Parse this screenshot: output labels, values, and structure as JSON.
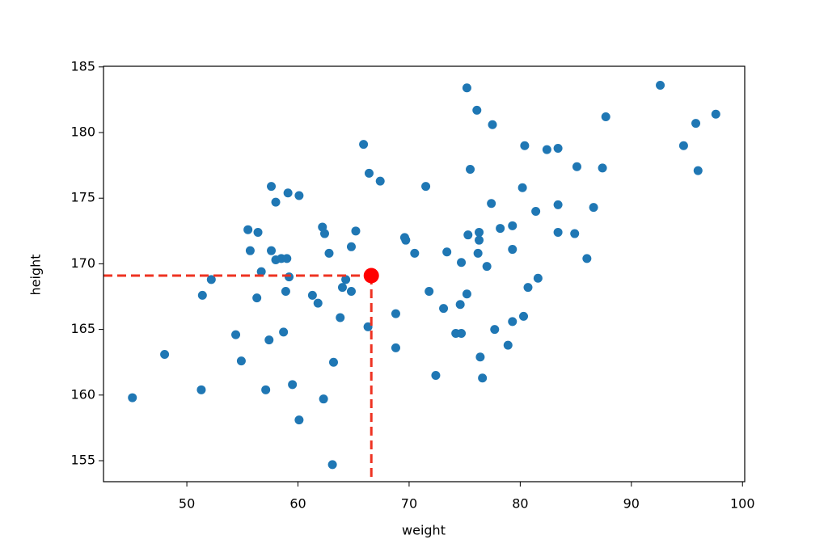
{
  "chart_data": {
    "type": "scatter",
    "xlabel": "weight",
    "ylabel": "height",
    "color": "#1f77b4",
    "x": [
      45.1,
      48.0,
      51.3,
      51.4,
      52.2,
      54.4,
      54.9,
      55.5,
      55.7,
      56.4,
      56.3,
      56.7,
      57.1,
      57.4,
      57.6,
      57.6,
      58.0,
      58.0,
      58.5,
      58.7,
      59.0,
      58.9,
      59.1,
      59.2,
      59.5,
      60.1,
      60.1,
      61.3,
      61.8,
      62.2,
      62.4,
      62.3,
      62.8,
      63.1,
      63.2,
      63.8,
      64.0,
      64.3,
      64.8,
      64.8,
      65.2,
      65.9,
      66.3,
      66.4,
      67.4,
      68.8,
      68.8,
      69.6,
      69.7,
      70.5,
      71.5,
      71.8,
      72.4,
      73.1,
      73.4,
      74.2,
      74.7,
      74.6,
      74.7,
      75.2,
      75.2,
      75.3,
      75.5,
      76.1,
      76.2,
      76.3,
      76.3,
      76.4,
      76.6,
      77.0,
      77.4,
      77.5,
      77.7,
      78.2,
      78.9,
      79.3,
      79.3,
      79.3,
      80.2,
      80.3,
      80.4,
      80.7,
      81.6,
      81.4,
      82.4,
      83.4,
      83.4,
      83.4,
      84.9,
      85.1,
      86.0,
      86.6,
      87.4,
      87.7,
      92.6,
      94.7,
      95.8,
      96.0,
      97.6
    ],
    "y": [
      159.8,
      163.1,
      160.4,
      167.6,
      168.8,
      164.6,
      162.6,
      172.6,
      171.0,
      172.4,
      167.4,
      169.4,
      160.4,
      164.2,
      175.9,
      171.0,
      174.7,
      170.3,
      170.4,
      164.8,
      170.4,
      167.9,
      175.4,
      169.0,
      160.8,
      175.2,
      158.1,
      167.6,
      167.0,
      172.8,
      172.3,
      159.7,
      170.8,
      154.7,
      162.5,
      165.9,
      168.2,
      168.8,
      167.9,
      171.3,
      172.5,
      179.1,
      165.2,
      176.9,
      176.3,
      166.2,
      163.6,
      172.0,
      171.8,
      170.8,
      175.9,
      167.9,
      161.5,
      166.6,
      170.9,
      164.7,
      164.7,
      166.9,
      170.1,
      183.4,
      167.7,
      172.2,
      177.2,
      181.7,
      170.8,
      172.4,
      171.8,
      162.9,
      161.3,
      169.8,
      174.6,
      180.6,
      165.0,
      172.7,
      163.8,
      171.1,
      172.9,
      165.6,
      175.8,
      166.0,
      179.0,
      168.2,
      168.9,
      174.0,
      178.7,
      172.4,
      174.5,
      178.8,
      172.3,
      177.4,
      170.4,
      174.3,
      177.3,
      181.2,
      183.6,
      179.0,
      180.7,
      177.1,
      181.4
    ],
    "highlight": {
      "x": 66.6,
      "y": 169.1,
      "color": "#ff0000",
      "line_color": "#ee3322"
    },
    "xlim": [
      42.5,
      100.2
    ],
    "ylim": [
      153.4,
      185.05
    ],
    "xticks": [
      50,
      60,
      70,
      80,
      90,
      100
    ],
    "yticks": [
      155,
      160,
      165,
      170,
      175,
      180,
      185
    ]
  }
}
